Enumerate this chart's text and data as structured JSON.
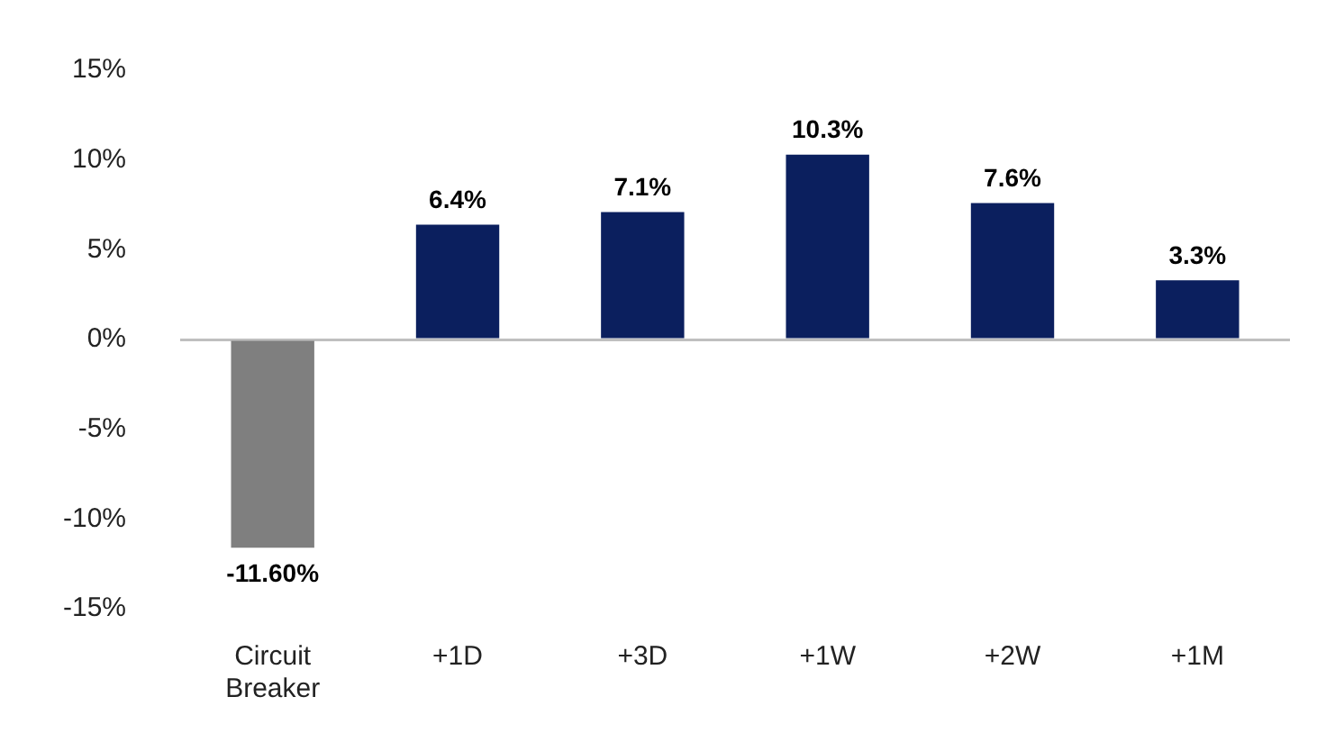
{
  "chart_data": {
    "type": "bar",
    "categories": [
      "Circuit Breaker",
      "+1D",
      "+3D",
      "+1W",
      "+2W",
      "+1M"
    ],
    "values": [
      -11.6,
      6.4,
      7.1,
      10.3,
      7.6,
      3.3
    ],
    "colors": [
      "#7f7f7f",
      "#0b1f5e",
      "#0b1f5e",
      "#0b1f5e",
      "#0b1f5e",
      "#0b1f5e"
    ],
    "value_labels": [
      "-11.60%",
      "6.4%",
      "7.1%",
      "10.3%",
      "7.6%",
      "3.3%"
    ],
    "ylim": [
      -15,
      15
    ],
    "yticks": [
      {
        "value": -15,
        "label": "-15%"
      },
      {
        "value": -10,
        "label": "-10%"
      },
      {
        "value": -5,
        "label": "-5%"
      },
      {
        "value": 0,
        "label": "0%"
      },
      {
        "value": 5,
        "label": "5%"
      },
      {
        "value": 10,
        "label": "10%"
      },
      {
        "value": 15,
        "label": "15%"
      }
    ],
    "legend": false
  }
}
